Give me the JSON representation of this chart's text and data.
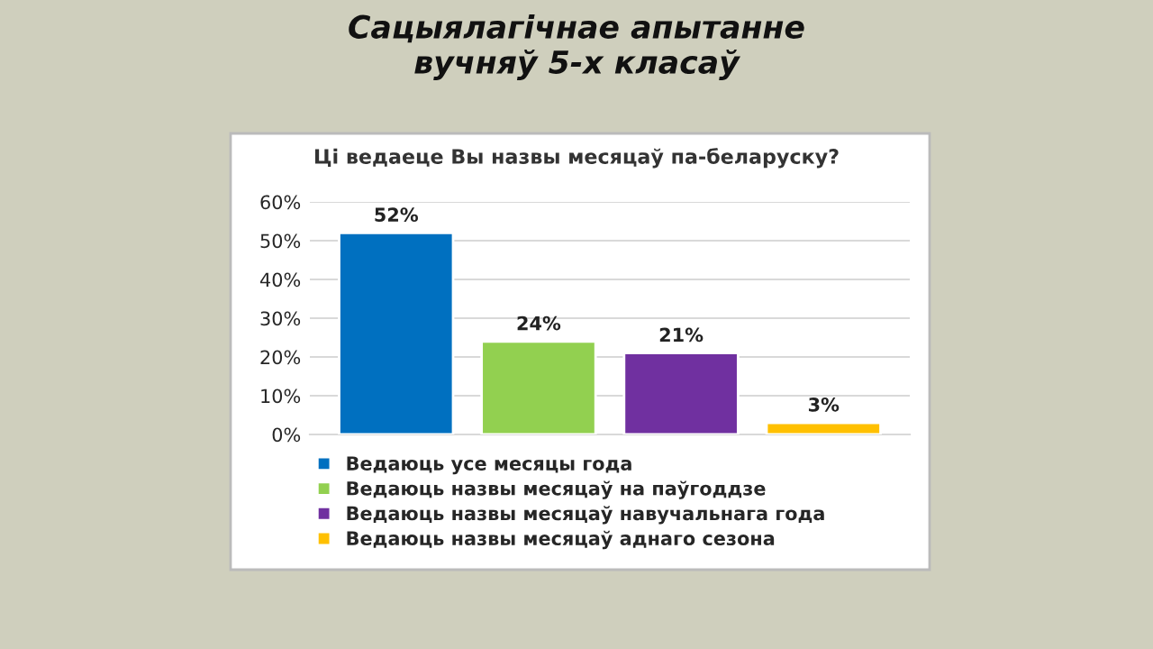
{
  "chart_data": {
    "type": "bar",
    "title": "Сацыялагічнае апытанне\nвучняў 5-х класаў",
    "subtitle": "Ці ведаеце Вы назвы месяцаў па-беларуску?",
    "categories": [
      null
    ],
    "series": [
      {
        "name": "Ведаюць усе месяцы года",
        "color": "#0070c0",
        "values": [
          52
        ],
        "value_labels": [
          "52%"
        ]
      },
      {
        "name": "Ведаюць назвы месяцаў на паўгоддзе",
        "color": "#92d050",
        "values": [
          24
        ],
        "value_labels": [
          "24%"
        ]
      },
      {
        "name": "Ведаюць назвы месяцаў навучальнага года",
        "color": "#7030a0",
        "values": [
          21
        ],
        "value_labels": [
          "21%"
        ]
      },
      {
        "name": "Ведаюць назвы месяцаў аднаго сезона",
        "color": "#ffc000",
        "values": [
          3
        ],
        "value_labels": [
          "3%"
        ]
      }
    ],
    "ylim": [
      0,
      60
    ],
    "yticks": [
      {
        "value": 0,
        "label": "0%"
      },
      {
        "value": 10,
        "label": "10%"
      },
      {
        "value": 20,
        "label": "20%"
      },
      {
        "value": 30,
        "label": "30%"
      },
      {
        "value": 40,
        "label": "40%"
      },
      {
        "value": 50,
        "label": "50%"
      },
      {
        "value": 60,
        "label": "60%"
      }
    ],
    "grid": "y",
    "legend": "bottom",
    "tick_labels": "y"
  }
}
